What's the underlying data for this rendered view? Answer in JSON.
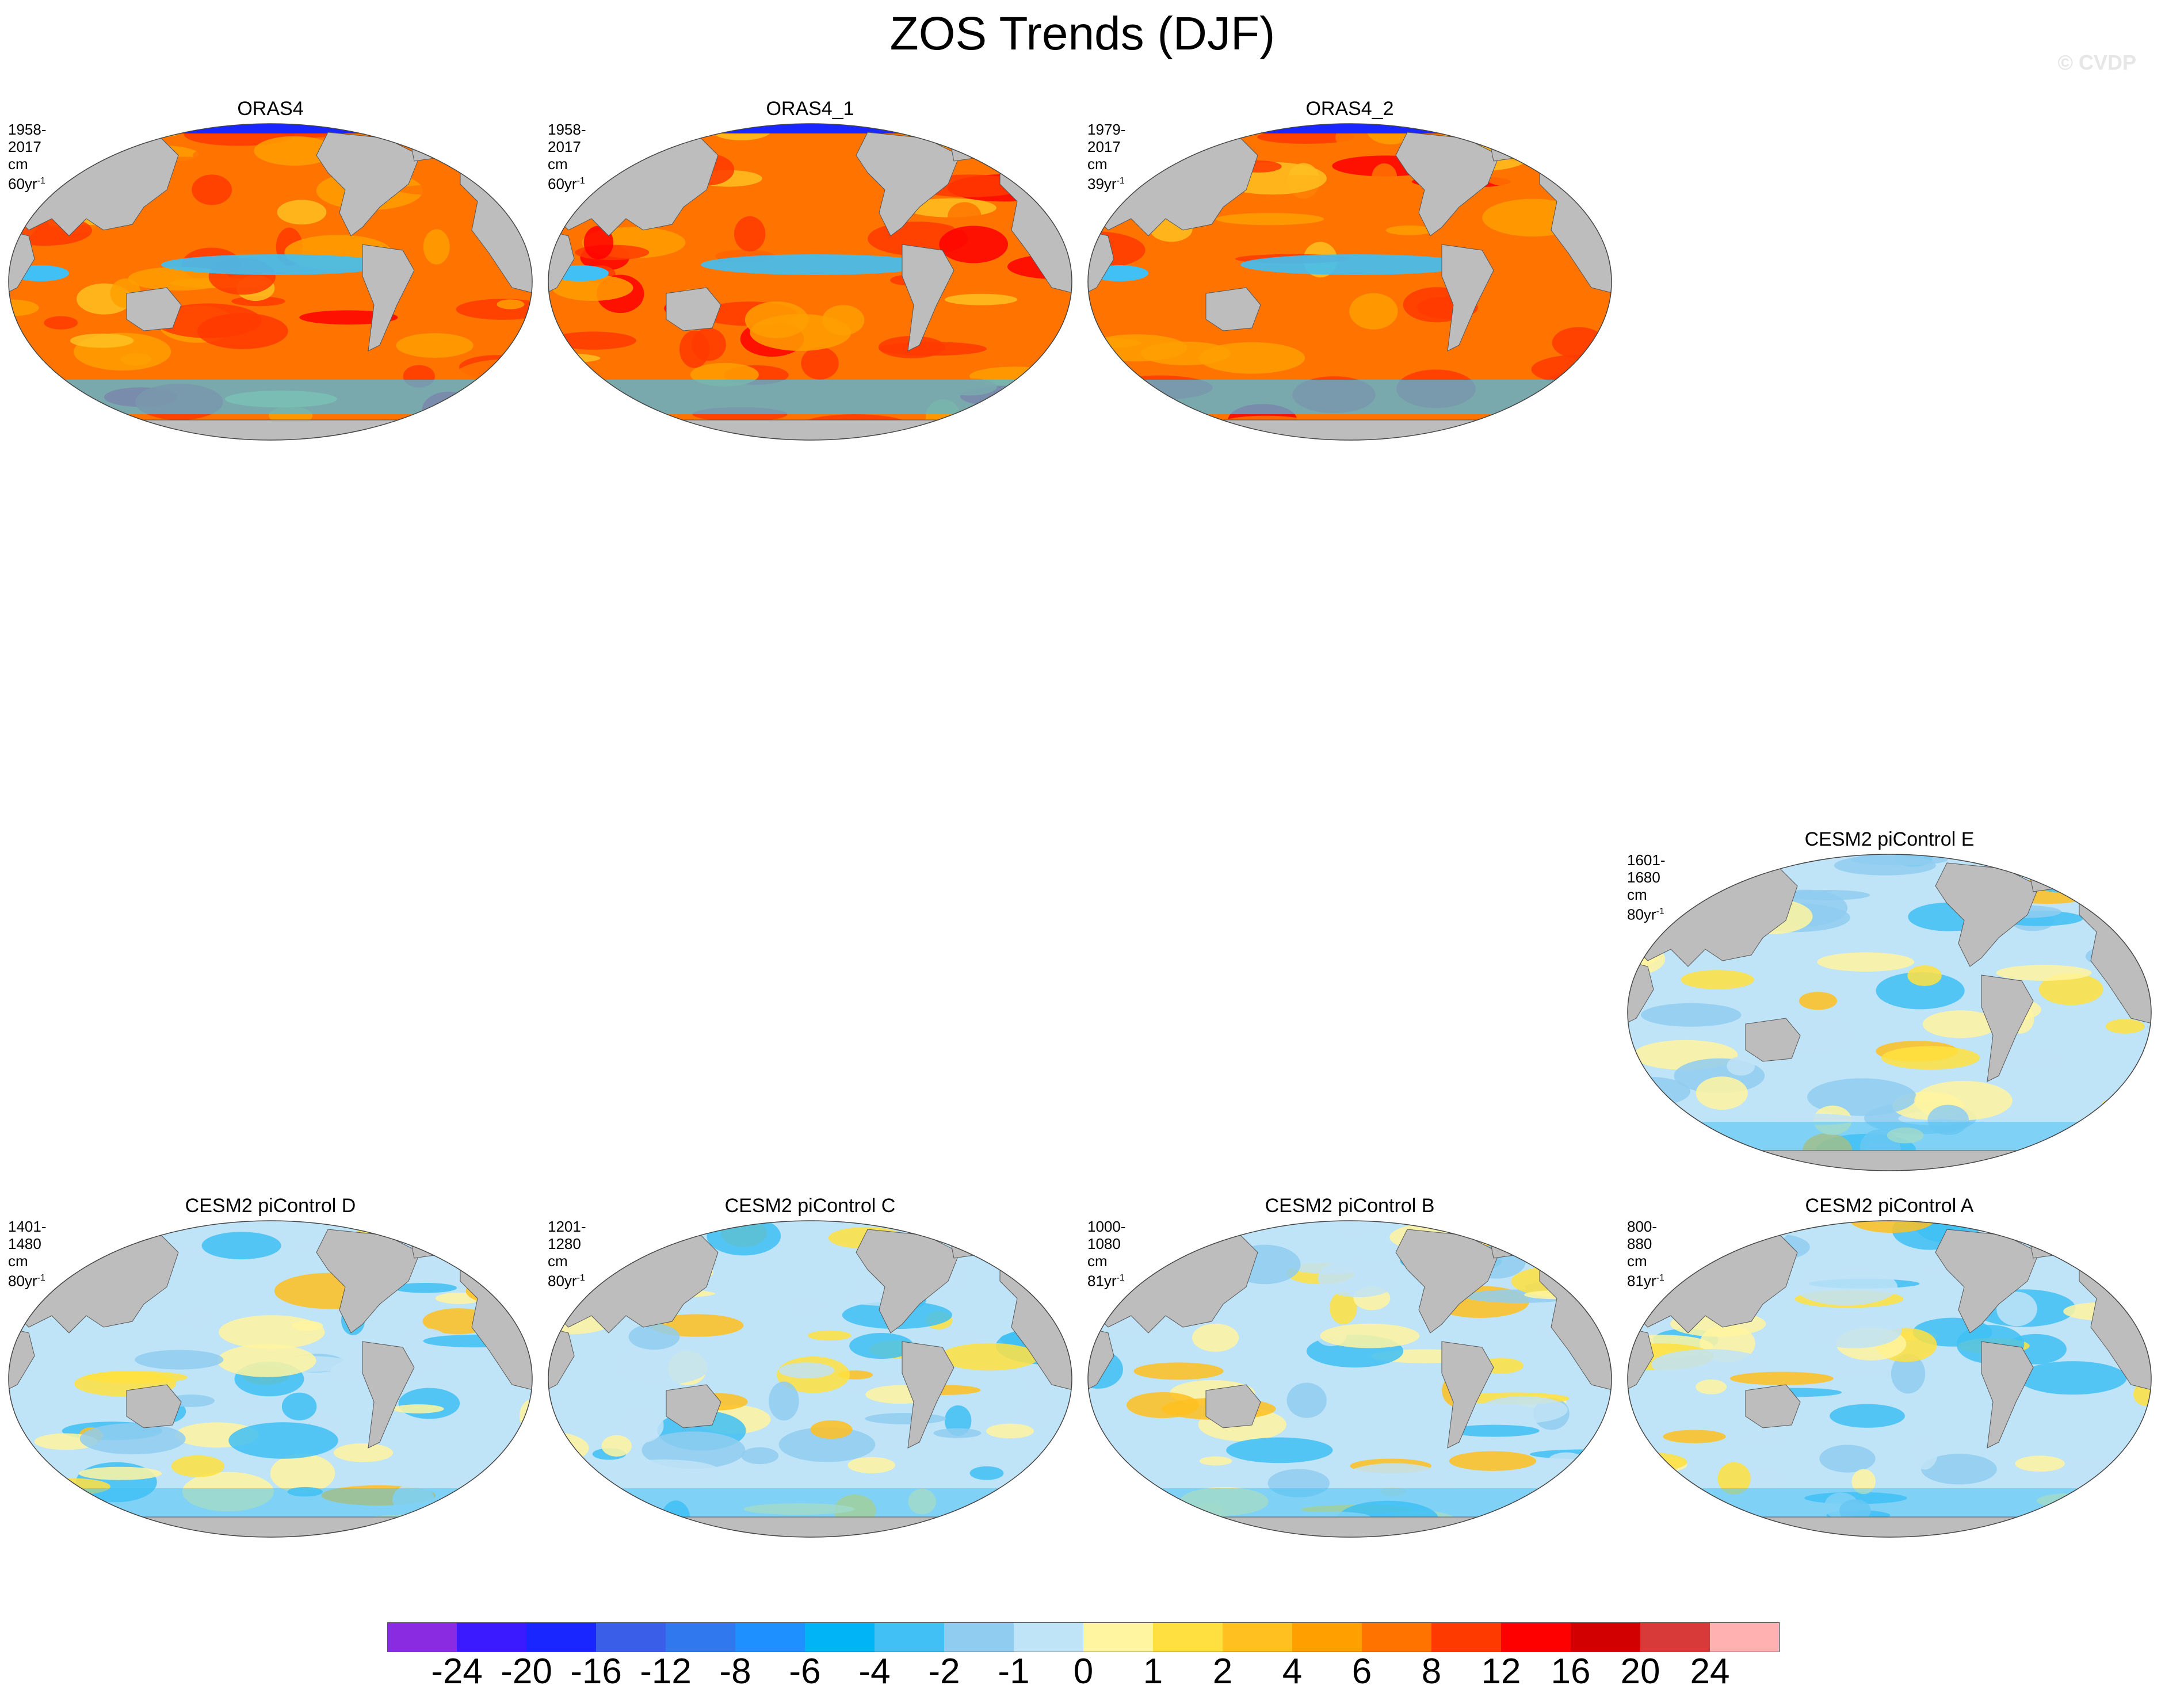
{
  "figure": {
    "title": "ZOS Trends (DJF)",
    "credit": "© CVDP"
  },
  "panels": [
    {
      "title": "ORAS4",
      "years": "1958-2017",
      "units": "cm 60yr",
      "units_sup": "-1",
      "pattern": "warm"
    },
    {
      "title": "ORAS4_1",
      "years": "1958-2017",
      "units": "cm 60yr",
      "units_sup": "-1",
      "pattern": "warm"
    },
    {
      "title": "ORAS4_2",
      "years": "1979-2017",
      "units": "cm 39yr",
      "units_sup": "-1",
      "pattern": "warm"
    },
    {
      "title": "CESM2 piControl E",
      "years": "1601-1680",
      "units": "cm 80yr",
      "units_sup": "-1",
      "pattern": "neutral"
    },
    {
      "title": "CESM2 piControl D",
      "years": "1401-1480",
      "units": "cm 80yr",
      "units_sup": "-1",
      "pattern": "neutral"
    },
    {
      "title": "CESM2 piControl C",
      "years": "1201-1280",
      "units": "cm 80yr",
      "units_sup": "-1",
      "pattern": "neutral"
    },
    {
      "title": "CESM2 piControl B",
      "years": "1000-1080",
      "units": "cm 81yr",
      "units_sup": "-1",
      "pattern": "neutral"
    },
    {
      "title": "CESM2 piControl A",
      "years": "800-880",
      "units": "cm 81yr",
      "units_sup": "-1",
      "pattern": "neutral"
    }
  ],
  "colorbar": {
    "labels": [
      "-24",
      "-20",
      "-16",
      "-12",
      "-8",
      "-6",
      "-4",
      "-2",
      "-1",
      "0",
      "1",
      "2",
      "4",
      "6",
      "8",
      "12",
      "16",
      "20",
      "24"
    ],
    "colors": [
      "#8a2be2",
      "#3b1aff",
      "#1a26ff",
      "#3a5ee8",
      "#2f78ee",
      "#1e90ff",
      "#00b4f5",
      "#40c0f5",
      "#8fccf0",
      "#bfe3f7",
      "#fff5a0",
      "#ffe040",
      "#ffc020",
      "#ff9f00",
      "#ff7400",
      "#ff3a00",
      "#ff0000",
      "#d20000",
      "#d83a3a",
      "#ffb0b0"
    ]
  }
}
